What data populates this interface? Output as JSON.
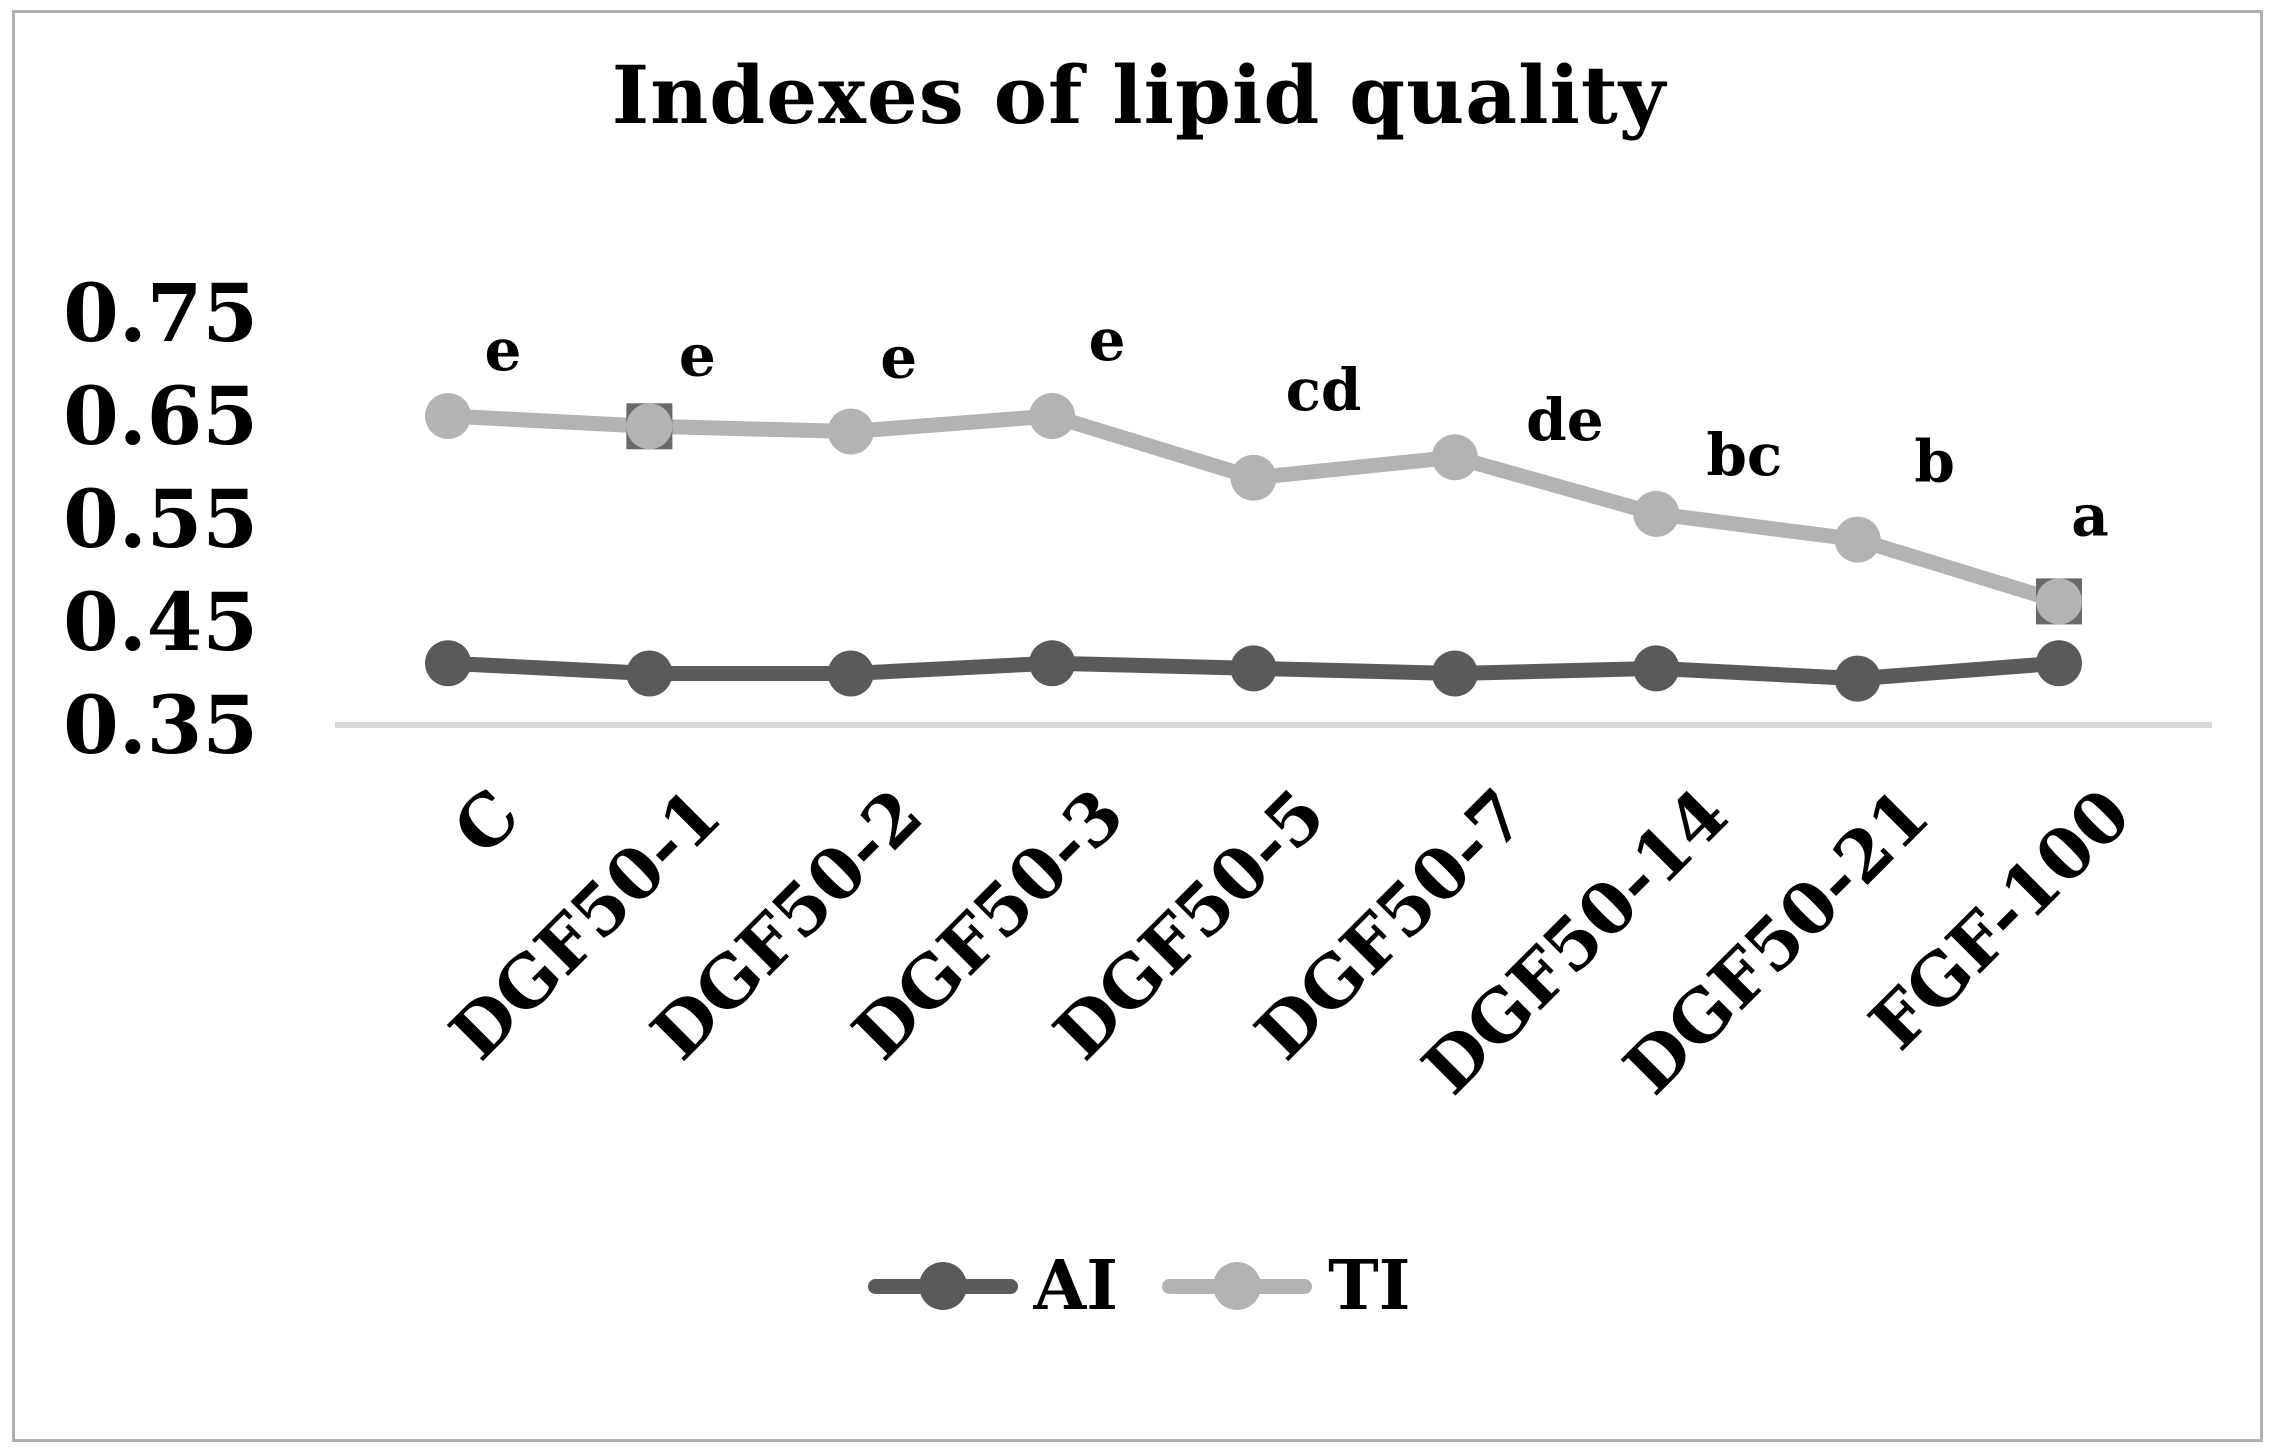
{
  "chart_data": {
    "type": "line",
    "title": "Indexes of lipid quality",
    "categories": [
      "C",
      "DGF50-1",
      "DGF50-2",
      "DGF50-3",
      "DGF50-5",
      "DGF50-7",
      "DGF50-14",
      "DGF50-21",
      "FGF-100"
    ],
    "series": [
      {
        "name": "AI",
        "color": "#5a5a5a",
        "values": [
          0.41,
          0.4,
          0.4,
          0.41,
          0.405,
          0.4,
          0.405,
          0.395,
          0.41
        ]
      },
      {
        "name": "TI",
        "color": "#b3b3b3",
        "values": [
          0.65,
          0.64,
          0.635,
          0.65,
          0.59,
          0.61,
          0.555,
          0.53,
          0.47
        ]
      }
    ],
    "point_annotations": [
      "e",
      "e",
      "e",
      "e",
      "cd",
      "de",
      "bc",
      "b",
      "a"
    ],
    "annotation_color": "#000000",
    "selection_squares": {
      "series": "TI",
      "category_indices": [
        1,
        8
      ],
      "color": "#696969"
    },
    "y_ticks": [
      "0.75",
      "0.65",
      "0.55",
      "0.45",
      "0.35"
    ],
    "ylim": [
      0.35,
      0.75
    ],
    "grid": false,
    "legend_position": "bottom",
    "legend_entries": [
      "AI",
      "TI"
    ],
    "axis_line_color": "#d9d9d9",
    "frame_color": "#b0b0b0",
    "text_color": "#000000"
  }
}
